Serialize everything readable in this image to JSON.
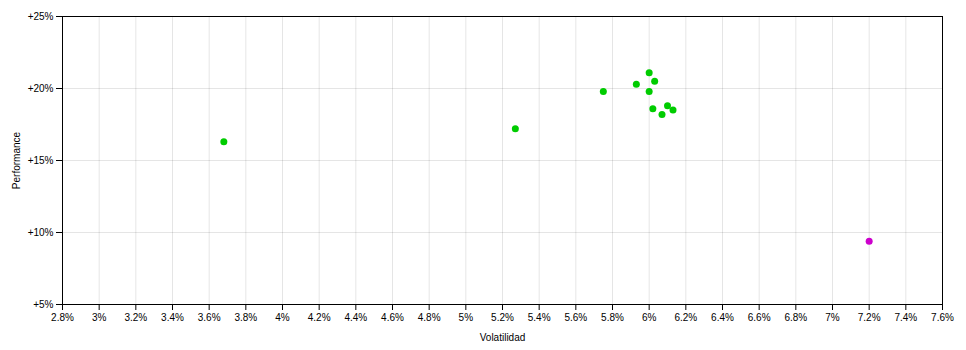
{
  "chart_data": {
    "type": "scatter",
    "xlabel": "Volatilidad",
    "ylabel": "Performance",
    "series": [
      {
        "color": "#00cc00",
        "x": [
          3.68,
          5.27,
          5.75,
          5.93,
          6.0,
          6.03,
          6.02,
          6.1,
          6.13,
          6.07,
          6.0
        ],
        "values": [
          16.3,
          17.2,
          19.8,
          20.3,
          21.1,
          20.5,
          18.6,
          18.8,
          18.5,
          18.2,
          19.8
        ]
      },
      {
        "color": "#cc00cc",
        "x": [
          7.2
        ],
        "values": [
          9.4
        ]
      }
    ],
    "xlim": [
      2.8,
      7.6
    ],
    "ylim": [
      5,
      25
    ],
    "xticks": [
      {
        "value": 2.8,
        "label": "2.8%"
      },
      {
        "value": 3.0,
        "label": "3%"
      },
      {
        "value": 3.2,
        "label": "3.2%"
      },
      {
        "value": 3.4,
        "label": "3.4%"
      },
      {
        "value": 3.6,
        "label": "3.6%"
      },
      {
        "value": 3.8,
        "label": "3.8%"
      },
      {
        "value": 4.0,
        "label": "4%"
      },
      {
        "value": 4.2,
        "label": "4.2%"
      },
      {
        "value": 4.4,
        "label": "4.4%"
      },
      {
        "value": 4.6,
        "label": "4.6%"
      },
      {
        "value": 4.8,
        "label": "4.8%"
      },
      {
        "value": 5.0,
        "label": "5%"
      },
      {
        "value": 5.2,
        "label": "5.2%"
      },
      {
        "value": 5.4,
        "label": "5.4%"
      },
      {
        "value": 5.6,
        "label": "5.6%"
      },
      {
        "value": 5.8,
        "label": "5.8%"
      },
      {
        "value": 6.0,
        "label": "6%"
      },
      {
        "value": 6.2,
        "label": "6.2%"
      },
      {
        "value": 6.4,
        "label": "6.4%"
      },
      {
        "value": 6.6,
        "label": "6.6%"
      },
      {
        "value": 6.8,
        "label": "6.8%"
      },
      {
        "value": 7.0,
        "label": "7%"
      },
      {
        "value": 7.2,
        "label": "7.2%"
      },
      {
        "value": 7.4,
        "label": "7.4%"
      },
      {
        "value": 7.6,
        "label": "7.6%"
      }
    ],
    "yticks": [
      {
        "value": 5,
        "label": "+5%"
      },
      {
        "value": 10,
        "label": "+10%"
      },
      {
        "value": 15,
        "label": "+15%"
      },
      {
        "value": 20,
        "label": "+20%"
      },
      {
        "value": 25,
        "label": "+25%"
      }
    ],
    "grid": true
  }
}
